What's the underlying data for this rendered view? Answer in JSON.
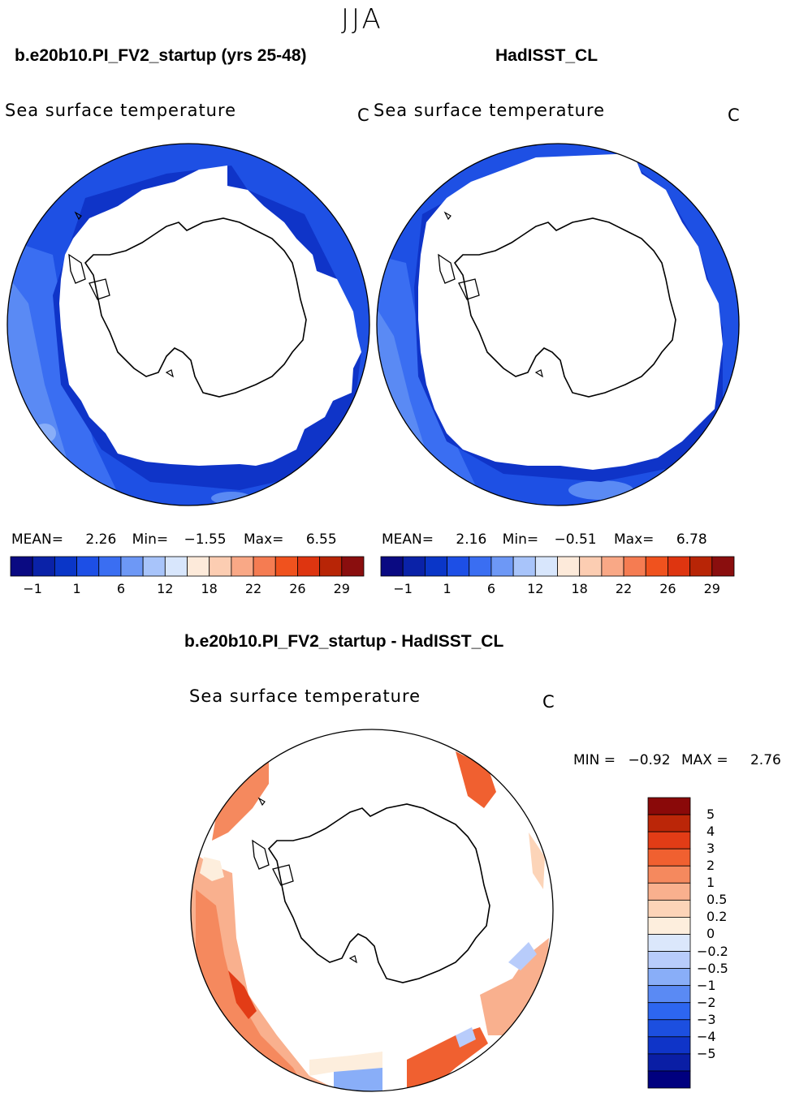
{
  "season": "JJA",
  "panels": {
    "model": {
      "title": "b.e20b10.PI_FV2_startup (yrs 25-48)",
      "variable": "Sea surface temperature",
      "units": "C",
      "mean_label": "MEAN=",
      "mean_value": "2.26",
      "min_label": "Min=",
      "min_value": "−1.55",
      "max_label": "Max=",
      "max_value": "6.55"
    },
    "obs": {
      "title": "HadISST_CL",
      "variable": "Sea surface temperature",
      "units": "C",
      "mean_label": "MEAN=",
      "mean_value": "2.16",
      "min_label": "Min=",
      "min_value": "−0.51",
      "max_label": "Max=",
      "max_value": "6.78"
    },
    "diff": {
      "title": "b.e20b10.PI_FV2_startup - HadISST_CL",
      "variable": "Sea surface temperature",
      "units": "C",
      "min_label": "MIN =",
      "min_value": "−0.92",
      "max_label": "MAX =",
      "max_value": "2.76"
    }
  },
  "abs_colorbar": {
    "colors": [
      "#0a0a82",
      "#0a22a8",
      "#0a36c8",
      "#1d4fe6",
      "#3a6ef2",
      "#6d98f6",
      "#a8c4fa",
      "#d8e6fc",
      "#fdeada",
      "#fccdb2",
      "#f9a886",
      "#f57c52",
      "#f0521e",
      "#de3510",
      "#b82506",
      "#8a0e0e"
    ],
    "labels": [
      "−1",
      "1",
      "6",
      "12",
      "18",
      "22",
      "26",
      "29"
    ]
  },
  "diff_colorbar": {
    "colors": [
      "#00007f",
      "#0a1ea5",
      "#0f34c8",
      "#1c4fe0",
      "#2d66f0",
      "#5a8af4",
      "#89aef8",
      "#b8ccfb",
      "#dbe7fb",
      "#fdeedd",
      "#fcd4b8",
      "#f9b08e",
      "#f5895e",
      "#f06030",
      "#e23c16",
      "#bb2608",
      "#8a0909"
    ],
    "labels": [
      "5",
      "4",
      "3",
      "2",
      "1",
      "0.5",
      "0.2",
      "0",
      "−0.2",
      "−0.5",
      "−1",
      "−2",
      "−3",
      "−4",
      "−5"
    ]
  }
}
